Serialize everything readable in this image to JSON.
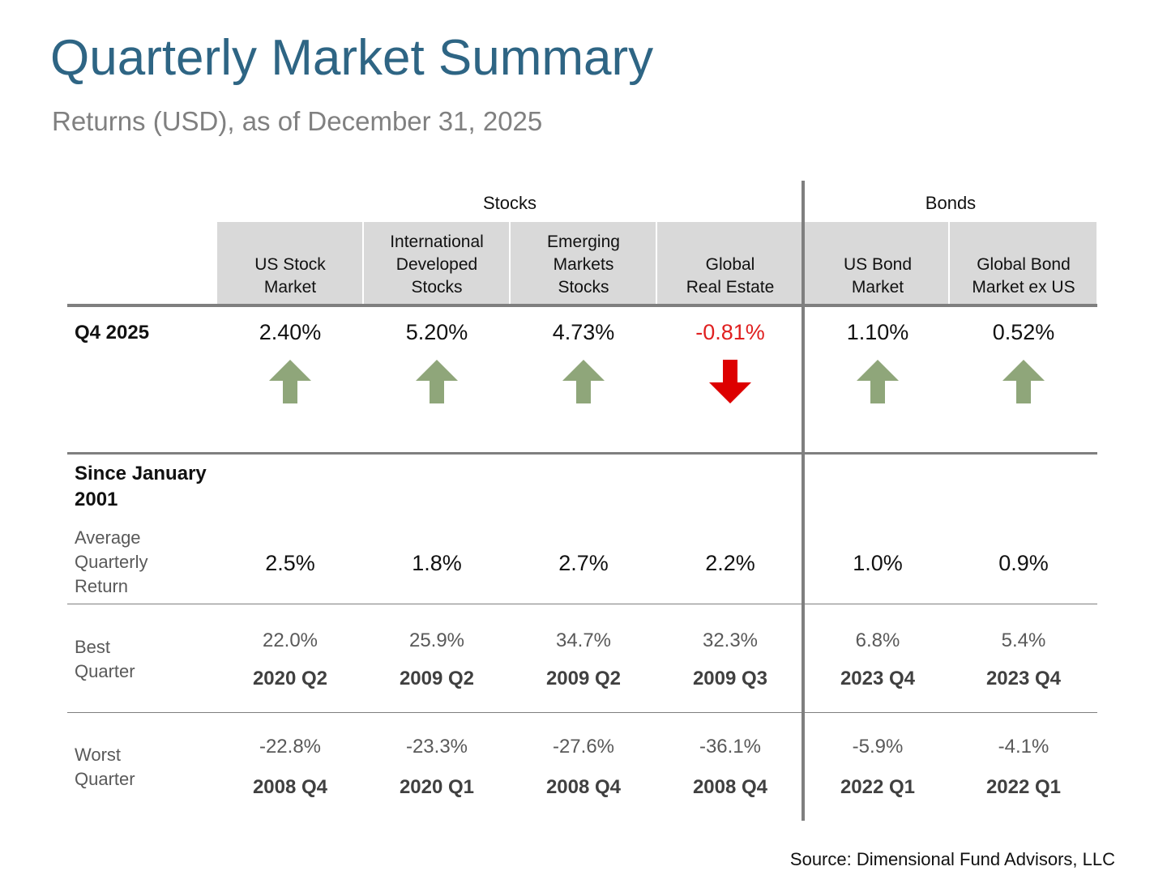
{
  "title": "Quarterly Market Summary",
  "subtitle": "Returns (USD), as of December 31, 2025",
  "groups": {
    "stocks": "Stocks",
    "bonds": "Bonds"
  },
  "columns": [
    "US Stock\nMarket",
    "International\nDeveloped\nStocks",
    "Emerging\nMarkets\nStocks",
    "Global\nReal Estate",
    "US Bond\nMarket",
    "Global Bond\nMarket ex US"
  ],
  "q4": {
    "label": "Q4 2025",
    "values": [
      "2.40%",
      "5.20%",
      "4.73%",
      "-0.81%",
      "1.10%",
      "0.52%"
    ],
    "directions": [
      "up",
      "up",
      "up",
      "down",
      "up",
      "up"
    ]
  },
  "since": {
    "label": "Since January\n2001",
    "avg_label": "Average\nQuarterly\nReturn",
    "avg_values": [
      "2.5%",
      "1.8%",
      "2.7%",
      "2.2%",
      "1.0%",
      "0.9%"
    ]
  },
  "best": {
    "label": "Best\nQuarter",
    "values": [
      "22.0%",
      "25.9%",
      "34.7%",
      "32.3%",
      "6.8%",
      "5.4%"
    ],
    "quarters": [
      "2020 Q2",
      "2009 Q2",
      "2009 Q2",
      "2009 Q3",
      "2023 Q4",
      "2023 Q4"
    ]
  },
  "worst": {
    "label": "Worst\nQuarter",
    "values": [
      "-22.8%",
      "-23.3%",
      "-27.6%",
      "-36.1%",
      "-5.9%",
      "-4.1%"
    ],
    "quarters": [
      "2008 Q4",
      "2020 Q1",
      "2008 Q4",
      "2008 Q4",
      "2022 Q1",
      "2022 Q1"
    ]
  },
  "colors": {
    "up": "#8fa67a",
    "down": "#dd0000",
    "title": "#2e6584"
  },
  "source": "Source: Dimensional Fund Advisors, LLC"
}
